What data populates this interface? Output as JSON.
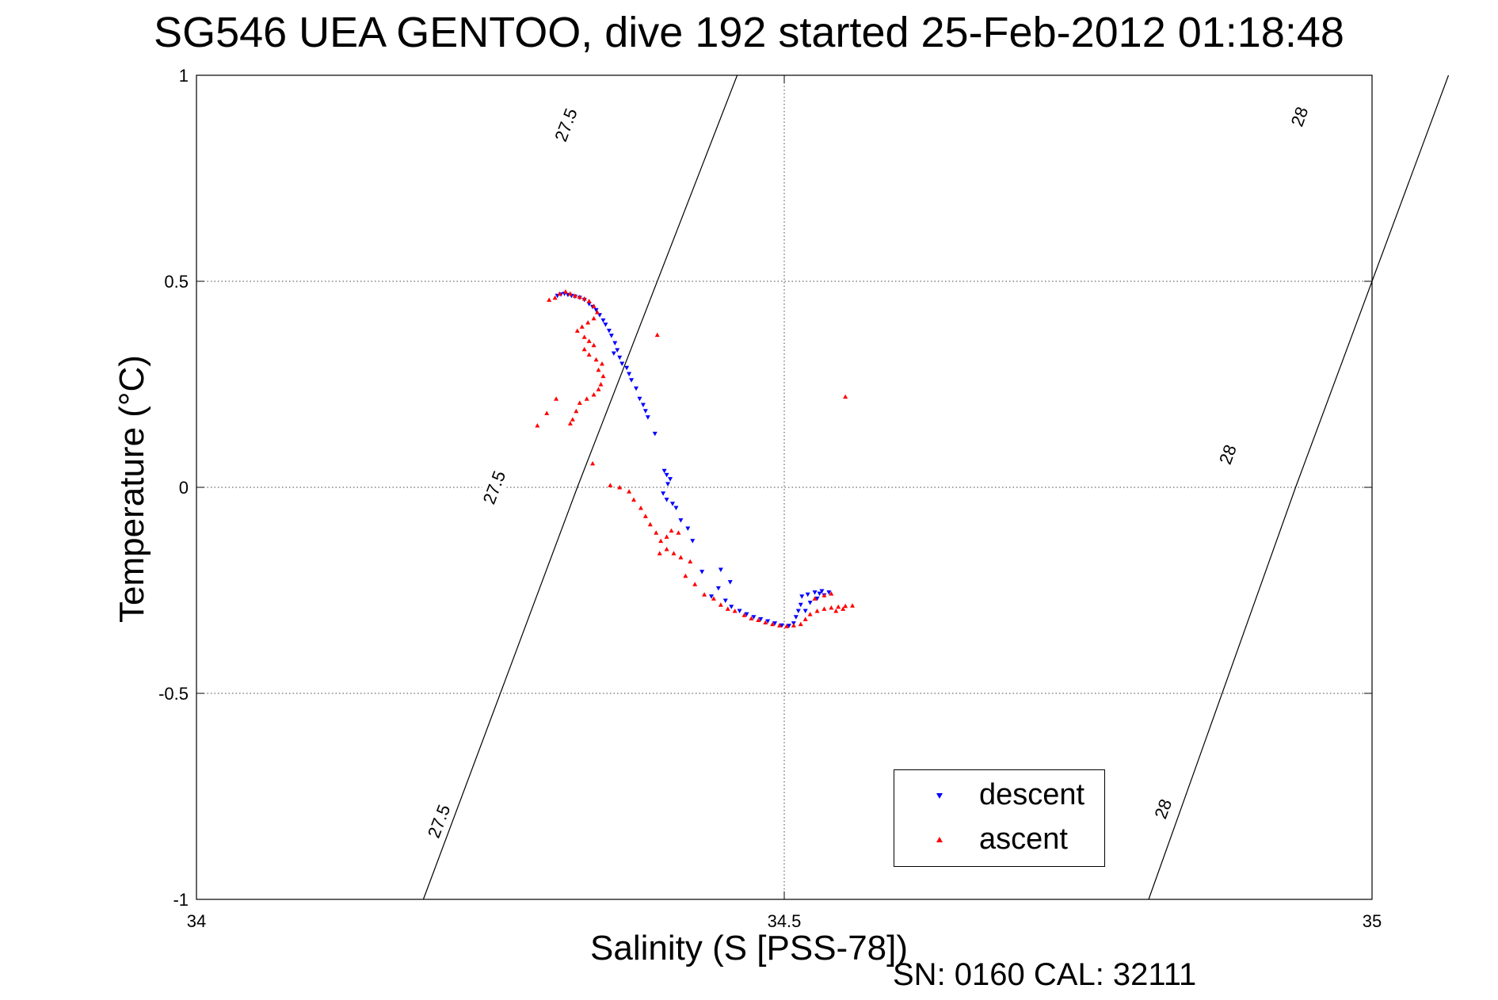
{
  "header": {
    "title": "SG546 UEA GENTOO, dive 192 started 25-Feb-2012 01:18:48"
  },
  "footer": {
    "serial": "SN: 0160  CAL: 32111"
  },
  "chart_data": {
    "type": "scatter",
    "title": "SG546 UEA GENTOO, dive 192 started 25-Feb-2012 01:18:48",
    "xlabel": "Salinity (S [PSS-78])",
    "ylabel": "Temperature (°C)",
    "xlim": [
      34,
      35
    ],
    "ylim": [
      -1,
      1
    ],
    "xticks": [
      34,
      34.5,
      35
    ],
    "xtick_labels": [
      "34",
      "34.5",
      "35"
    ],
    "yticks": [
      -1,
      -0.5,
      0,
      0.5,
      1
    ],
    "ytick_labels": [
      "-1",
      "-0.5",
      "0",
      "0.5",
      "1"
    ],
    "grid": true,
    "legend": {
      "placement": "bottom-right",
      "entries": [
        "descent",
        "ascent"
      ]
    },
    "colors": {
      "descent": "#0000ff",
      "ascent": "#ff0000"
    },
    "isopycnals": [
      {
        "label": "27.5",
        "points": [
          [
            34.193,
            -1
          ],
          [
            34.324,
            0
          ],
          [
            34.46,
            1
          ]
        ],
        "label_positions": [
          [
            34.206,
            -0.81
          ],
          [
            34.253,
            0.0
          ],
          [
            34.314,
            0.88
          ]
        ]
      },
      {
        "label": "28",
        "points": [
          [
            34.81,
            -1
          ],
          [
            34.935,
            0
          ],
          [
            35.065,
            1
          ]
        ],
        "label_positions": [
          [
            34.822,
            -0.78
          ],
          [
            34.877,
            0.08
          ],
          [
            34.938,
            0.9
          ]
        ]
      }
    ],
    "series": [
      {
        "name": "descent",
        "marker": "triangle-down",
        "points": [
          [
            34.307,
            0.465
          ],
          [
            34.31,
            0.468
          ],
          [
            34.313,
            0.47
          ],
          [
            34.316,
            0.467
          ],
          [
            34.319,
            0.465
          ],
          [
            34.322,
            0.463
          ],
          [
            34.326,
            0.46
          ],
          [
            34.33,
            0.455
          ],
          [
            34.334,
            0.445
          ],
          [
            34.337,
            0.438
          ],
          [
            34.34,
            0.43
          ],
          [
            34.343,
            0.418
          ],
          [
            34.346,
            0.405
          ],
          [
            34.348,
            0.395
          ],
          [
            34.351,
            0.38
          ],
          [
            34.353,
            0.368
          ],
          [
            34.356,
            0.35
          ],
          [
            34.358,
            0.333
          ],
          [
            34.355,
            0.325
          ],
          [
            34.36,
            0.315
          ],
          [
            34.362,
            0.3
          ],
          [
            34.366,
            0.29
          ],
          [
            34.368,
            0.275
          ],
          [
            34.37,
            0.26
          ],
          [
            34.374,
            0.24
          ],
          [
            34.377,
            0.215
          ],
          [
            34.38,
            0.2
          ],
          [
            34.382,
            0.185
          ],
          [
            34.384,
            0.17
          ],
          [
            34.39,
            0.13
          ],
          [
            34.398,
            0.04
          ],
          [
            34.4,
            0.03
          ],
          [
            34.403,
            0.02
          ],
          [
            34.401,
            0.008
          ],
          [
            34.397,
            -0.015
          ],
          [
            34.4,
            -0.03
          ],
          [
            34.405,
            -0.04
          ],
          [
            34.408,
            -0.05
          ],
          [
            34.412,
            -0.08
          ],
          [
            34.418,
            -0.1
          ],
          [
            34.422,
            -0.13
          ],
          [
            34.43,
            -0.205
          ],
          [
            34.446,
            -0.2
          ],
          [
            34.454,
            -0.23
          ],
          [
            34.444,
            -0.245
          ],
          [
            34.438,
            -0.265
          ],
          [
            34.45,
            -0.275
          ],
          [
            34.455,
            -0.29
          ],
          [
            34.462,
            -0.3
          ],
          [
            34.468,
            -0.308
          ],
          [
            34.474,
            -0.315
          ],
          [
            34.48,
            -0.32
          ],
          [
            34.486,
            -0.325
          ],
          [
            34.492,
            -0.33
          ],
          [
            34.498,
            -0.335
          ],
          [
            34.504,
            -0.336
          ],
          [
            34.508,
            -0.33
          ],
          [
            34.51,
            -0.315
          ],
          [
            34.512,
            -0.3
          ],
          [
            34.514,
            -0.285
          ],
          [
            34.515,
            -0.265
          ],
          [
            34.52,
            -0.26
          ],
          [
            34.526,
            -0.255
          ],
          [
            34.532,
            -0.252
          ],
          [
            34.538,
            -0.255
          ],
          [
            34.528,
            -0.27
          ],
          [
            34.522,
            -0.28
          ],
          [
            34.518,
            -0.3
          ],
          [
            34.534,
            -0.262
          ],
          [
            34.53,
            -0.258
          ]
        ]
      },
      {
        "name": "ascent",
        "marker": "triangle-up",
        "points": [
          [
            34.3,
            0.455
          ],
          [
            34.305,
            0.46
          ],
          [
            34.309,
            0.47
          ],
          [
            34.314,
            0.475
          ],
          [
            34.318,
            0.47
          ],
          [
            34.322,
            0.465
          ],
          [
            34.326,
            0.462
          ],
          [
            34.33,
            0.458
          ],
          [
            34.334,
            0.452
          ],
          [
            34.338,
            0.44
          ],
          [
            34.341,
            0.425
          ],
          [
            34.338,
            0.41
          ],
          [
            34.333,
            0.4
          ],
          [
            34.328,
            0.39
          ],
          [
            34.324,
            0.38
          ],
          [
            34.33,
            0.365
          ],
          [
            34.334,
            0.355
          ],
          [
            34.338,
            0.345
          ],
          [
            34.33,
            0.335
          ],
          [
            34.334,
            0.322
          ],
          [
            34.34,
            0.31
          ],
          [
            34.345,
            0.3
          ],
          [
            34.342,
            0.285
          ],
          [
            34.346,
            0.27
          ],
          [
            34.344,
            0.25
          ],
          [
            34.342,
            0.238
          ],
          [
            34.338,
            0.225
          ],
          [
            34.332,
            0.215
          ],
          [
            34.326,
            0.205
          ],
          [
            34.323,
            0.185
          ],
          [
            34.32,
            0.165
          ],
          [
            34.318,
            0.155
          ],
          [
            34.306,
            0.215
          ],
          [
            34.298,
            0.18
          ],
          [
            34.29,
            0.15
          ],
          [
            34.392,
            0.37
          ],
          [
            34.337,
            0.058
          ],
          [
            34.352,
            0.005
          ],
          [
            34.36,
            0.0
          ],
          [
            34.368,
            -0.01
          ],
          [
            34.372,
            -0.03
          ],
          [
            34.378,
            -0.05
          ],
          [
            34.382,
            -0.07
          ],
          [
            34.386,
            -0.09
          ],
          [
            34.391,
            -0.11
          ],
          [
            34.395,
            -0.13
          ],
          [
            34.4,
            -0.15
          ],
          [
            34.406,
            -0.16
          ],
          [
            34.412,
            -0.17
          ],
          [
            34.42,
            -0.18
          ],
          [
            34.394,
            -0.16
          ],
          [
            34.4,
            -0.12
          ],
          [
            34.404,
            -0.105
          ],
          [
            34.41,
            -0.11
          ],
          [
            34.416,
            -0.215
          ],
          [
            34.424,
            -0.235
          ],
          [
            34.432,
            -0.26
          ],
          [
            34.44,
            -0.27
          ],
          [
            34.446,
            -0.285
          ],
          [
            34.452,
            -0.295
          ],
          [
            34.458,
            -0.3
          ],
          [
            34.466,
            -0.31
          ],
          [
            34.472,
            -0.318
          ],
          [
            34.478,
            -0.322
          ],
          [
            34.484,
            -0.328
          ],
          [
            34.49,
            -0.332
          ],
          [
            34.496,
            -0.335
          ],
          [
            34.502,
            -0.337
          ],
          [
            34.508,
            -0.335
          ],
          [
            34.514,
            -0.332
          ],
          [
            34.518,
            -0.32
          ],
          [
            34.522,
            -0.308
          ],
          [
            34.528,
            -0.3
          ],
          [
            34.534,
            -0.295
          ],
          [
            34.54,
            -0.292
          ],
          [
            34.546,
            -0.29
          ],
          [
            34.552,
            -0.288
          ],
          [
            34.558,
            -0.287
          ],
          [
            34.526,
            -0.27
          ],
          [
            34.534,
            -0.262
          ],
          [
            34.54,
            -0.258
          ],
          [
            34.544,
            -0.3
          ],
          [
            34.55,
            -0.295
          ],
          [
            34.552,
            0.22
          ]
        ]
      }
    ]
  }
}
